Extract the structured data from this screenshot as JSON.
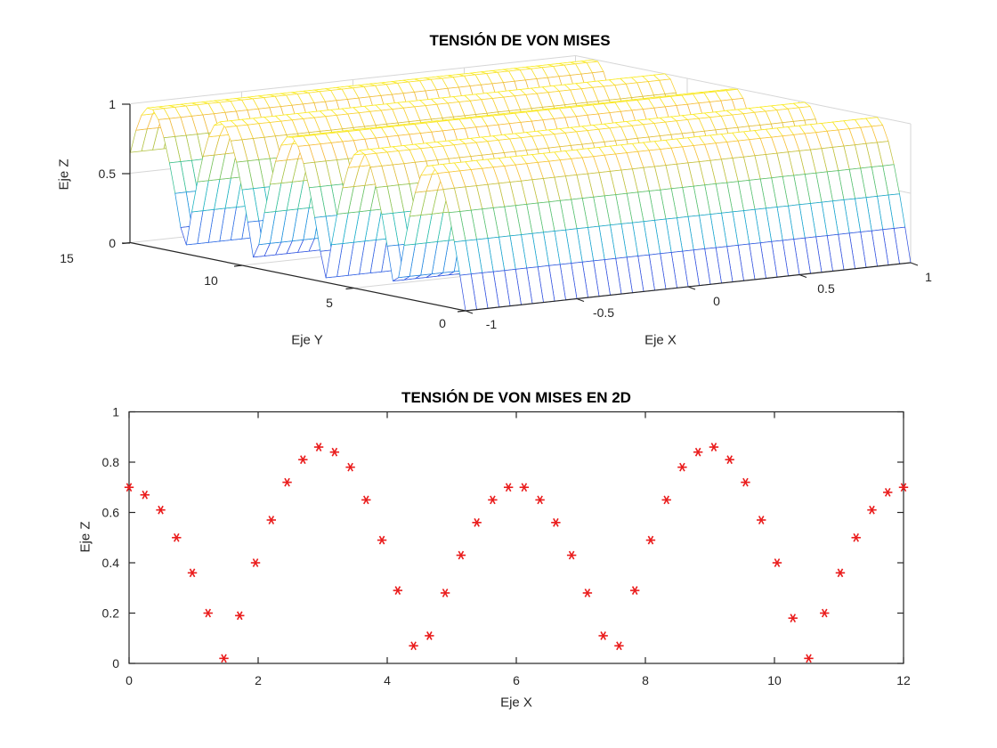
{
  "figure": {
    "background": "#ffffff"
  },
  "chart_data": [
    {
      "type": "heatmap",
      "subtype": "mesh-surface-3d",
      "title": "TENSIÓN DE VON MISES",
      "xlabel": "Eje X",
      "ylabel": "Eje Y",
      "zlabel": "Eje Z",
      "x_range": [
        -1,
        1
      ],
      "y_range": [
        0,
        15
      ],
      "z_range": [
        0,
        1
      ],
      "x_ticks": [
        "-1",
        "-0.5",
        "0",
        "0.5",
        "1"
      ],
      "y_ticks": [
        "0",
        "5",
        "10",
        "15"
      ],
      "z_ticks": [
        "0",
        "0.5",
        "1"
      ],
      "z_function": "abs(sin(y))",
      "x_dependence": "none (ridges run parallel to X axis)",
      "grid_step_x": 0.05,
      "grid_step_y": 0.25,
      "colormap": "parula",
      "colormap_stops": [
        [
          0.0,
          "#3a2ba0"
        ],
        [
          0.1,
          "#374ade"
        ],
        [
          0.2,
          "#2c72e6"
        ],
        [
          0.3,
          "#1a92dc"
        ],
        [
          0.4,
          "#16aec8"
        ],
        [
          0.5,
          "#26bea4"
        ],
        [
          0.6,
          "#60c162"
        ],
        [
          0.7,
          "#a0c446"
        ],
        [
          0.8,
          "#d4be37"
        ],
        [
          0.88,
          "#f5b93c"
        ],
        [
          0.95,
          "#f8dc2d"
        ],
        [
          1.0,
          "#f9f01e"
        ]
      ],
      "wall_grid": true,
      "view": "MATLAB-style 3-D view, orthographic, elevation ~30 deg"
    },
    {
      "type": "scatter",
      "title": "TENSIÓN DE VON MISES EN 2D",
      "xlabel": "Eje X",
      "ylabel": "Eje Z",
      "xlim": [
        0,
        12
      ],
      "ylim": [
        0,
        1
      ],
      "x_ticks": [
        "0",
        "2",
        "4",
        "6",
        "8",
        "10",
        "12"
      ],
      "y_ticks": [
        "0",
        "0.2",
        "0.4",
        "0.6",
        "0.8",
        "1"
      ],
      "grid": false,
      "legend": "none",
      "marker": "asterisk",
      "marker_color": "#ea1c1c",
      "x": [
        0,
        0.245,
        0.49,
        0.735,
        0.98,
        1.224,
        1.469,
        1.714,
        1.959,
        2.204,
        2.449,
        2.694,
        2.939,
        3.184,
        3.429,
        3.673,
        3.918,
        4.163,
        4.408,
        4.653,
        4.898,
        5.143,
        5.388,
        5.633,
        5.878,
        6.122,
        6.367,
        6.612,
        6.857,
        7.102,
        7.347,
        7.592,
        7.837,
        8.082,
        8.327,
        8.571,
        8.816,
        9.061,
        9.306,
        9.551,
        9.796,
        10.041,
        10.286,
        10.531,
        10.776,
        11.02,
        11.265,
        11.51,
        11.755,
        12
      ],
      "y": [
        0.7,
        0.67,
        0.61,
        0.5,
        0.36,
        0.2,
        0.02,
        0.19,
        0.4,
        0.57,
        0.72,
        0.81,
        0.86,
        0.84,
        0.78,
        0.65,
        0.49,
        0.29,
        0.07,
        0.11,
        0.28,
        0.43,
        0.56,
        0.65,
        0.7,
        0.7,
        0.65,
        0.56,
        0.43,
        0.28,
        0.11,
        0.07,
        0.29,
        0.49,
        0.65,
        0.78,
        0.84,
        0.86,
        0.81,
        0.72,
        0.57,
        0.4,
        0.18,
        0.02,
        0.2,
        0.36,
        0.5,
        0.61,
        0.68,
        0.7
      ]
    }
  ],
  "labels": {
    "title_3d": "TENSIÓN DE VON MISES",
    "title_2d": "TENSIÓN DE VON MISES EN 2D",
    "eje_x": "Eje X",
    "eje_y": "Eje Y",
    "eje_z": "Eje Z"
  },
  "colors": {
    "axis": "#262626",
    "grid": "#d6d6d6",
    "marker": "#ea1c1c",
    "title": "#000000"
  }
}
